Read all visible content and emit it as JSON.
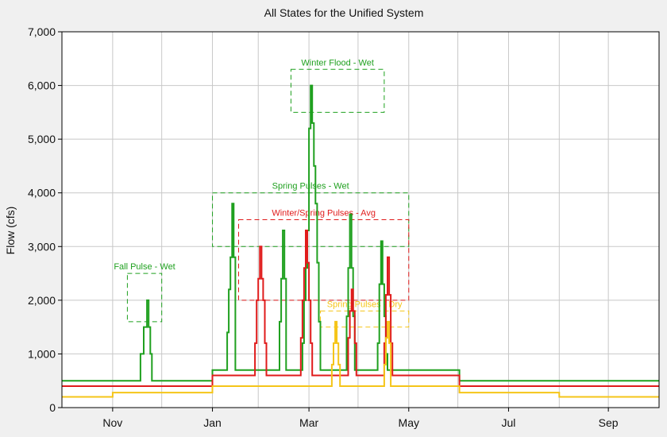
{
  "chart_data": {
    "type": "line",
    "title": "All States for the Unified System",
    "xlabel": "",
    "ylabel": "Flow (cfs)",
    "x_unit": "day-of-water-year",
    "xlim": [
      0,
      365
    ],
    "ylim": [
      0,
      7000
    ],
    "grid": true,
    "y_ticks": [
      0,
      1000,
      2000,
      3000,
      4000,
      5000,
      6000,
      7000
    ],
    "y_tick_labels": [
      "0",
      "1,000",
      "2,000",
      "3,000",
      "4,000",
      "5,000",
      "6,000",
      "7,000"
    ],
    "x_ticks": [
      {
        "label": "Nov",
        "x": 31
      },
      {
        "label": "Jan",
        "x": 92
      },
      {
        "label": "Mar",
        "x": 151
      },
      {
        "label": "May",
        "x": 212
      },
      {
        "label": "Jul",
        "x": 273
      },
      {
        "label": "Sep",
        "x": 334
      }
    ],
    "x_minor_gridlines": [
      0,
      61,
      120,
      181,
      242,
      304,
      365
    ],
    "series": [
      {
        "name": "Wet",
        "color": "#1fa01f",
        "points": [
          [
            0,
            500
          ],
          [
            48,
            500
          ],
          [
            48,
            1000
          ],
          [
            50,
            1000
          ],
          [
            50,
            1500
          ],
          [
            52,
            1500
          ],
          [
            52,
            2000
          ],
          [
            53,
            2000
          ],
          [
            53,
            1500
          ],
          [
            54,
            1500
          ],
          [
            54,
            1000
          ],
          [
            55,
            1000
          ],
          [
            55,
            500
          ],
          [
            92,
            500
          ],
          [
            92,
            700
          ],
          [
            101,
            700
          ],
          [
            101,
            1400
          ],
          [
            102,
            1400
          ],
          [
            102,
            2200
          ],
          [
            103,
            2200
          ],
          [
            103,
            2800
          ],
          [
            104,
            2800
          ],
          [
            104,
            3800
          ],
          [
            105,
            3800
          ],
          [
            105,
            2800
          ],
          [
            106,
            2800
          ],
          [
            106,
            700
          ],
          [
            133,
            700
          ],
          [
            133,
            1600
          ],
          [
            134,
            1600
          ],
          [
            134,
            2400
          ],
          [
            135,
            2400
          ],
          [
            135,
            3300
          ],
          [
            136,
            3300
          ],
          [
            136,
            2400
          ],
          [
            137,
            2400
          ],
          [
            137,
            700
          ],
          [
            147,
            700
          ],
          [
            147,
            1200
          ],
          [
            148,
            1200
          ],
          [
            148,
            2000
          ],
          [
            149,
            2000
          ],
          [
            149,
            2600
          ],
          [
            150,
            2600
          ],
          [
            150,
            3300
          ],
          [
            151,
            3300
          ],
          [
            151,
            5200
          ],
          [
            152,
            5200
          ],
          [
            152,
            6000
          ],
          [
            153,
            6000
          ],
          [
            153,
            5300
          ],
          [
            154,
            5300
          ],
          [
            154,
            4500
          ],
          [
            155,
            4500
          ],
          [
            155,
            3800
          ],
          [
            156,
            3800
          ],
          [
            156,
            2700
          ],
          [
            157,
            2700
          ],
          [
            157,
            1600
          ],
          [
            158,
            1600
          ],
          [
            158,
            700
          ],
          [
            174,
            700
          ],
          [
            174,
            1700
          ],
          [
            175,
            1700
          ],
          [
            175,
            2600
          ],
          [
            176,
            2600
          ],
          [
            176,
            3600
          ],
          [
            177,
            3600
          ],
          [
            177,
            2600
          ],
          [
            178,
            2600
          ],
          [
            178,
            1700
          ],
          [
            179,
            1700
          ],
          [
            179,
            700
          ],
          [
            193,
            700
          ],
          [
            193,
            1200
          ],
          [
            194,
            1200
          ],
          [
            194,
            2300
          ],
          [
            195,
            2300
          ],
          [
            195,
            3100
          ],
          [
            196,
            3100
          ],
          [
            196,
            2300
          ],
          [
            197,
            2300
          ],
          [
            197,
            1700
          ],
          [
            198,
            1700
          ],
          [
            198,
            1000
          ],
          [
            199,
            1000
          ],
          [
            199,
            700
          ],
          [
            243,
            700
          ],
          [
            243,
            500
          ],
          [
            365,
            500
          ]
        ]
      },
      {
        "name": "Avg",
        "color": "#e01b1b",
        "points": [
          [
            0,
            400
          ],
          [
            92,
            400
          ],
          [
            92,
            600
          ],
          [
            118,
            600
          ],
          [
            118,
            1200
          ],
          [
            119,
            1200
          ],
          [
            119,
            2000
          ],
          [
            120,
            2000
          ],
          [
            120,
            2400
          ],
          [
            121,
            2400
          ],
          [
            121,
            3000
          ],
          [
            122,
            3000
          ],
          [
            122,
            2400
          ],
          [
            123,
            2400
          ],
          [
            123,
            2000
          ],
          [
            124,
            2000
          ],
          [
            124,
            1200
          ],
          [
            125,
            1200
          ],
          [
            125,
            600
          ],
          [
            146,
            600
          ],
          [
            146,
            1300
          ],
          [
            147,
            1300
          ],
          [
            147,
            2000
          ],
          [
            148,
            2000
          ],
          [
            148,
            2600
          ],
          [
            149,
            2600
          ],
          [
            149,
            3300
          ],
          [
            150,
            3300
          ],
          [
            150,
            2700
          ],
          [
            151,
            2700
          ],
          [
            151,
            2000
          ],
          [
            152,
            2000
          ],
          [
            152,
            1200
          ],
          [
            153,
            1200
          ],
          [
            153,
            600
          ],
          [
            175,
            600
          ],
          [
            175,
            1300
          ],
          [
            176,
            1300
          ],
          [
            176,
            1800
          ],
          [
            177,
            1800
          ],
          [
            177,
            2200
          ],
          [
            178,
            2200
          ],
          [
            178,
            1800
          ],
          [
            179,
            1800
          ],
          [
            179,
            1200
          ],
          [
            180,
            1200
          ],
          [
            180,
            600
          ],
          [
            197,
            600
          ],
          [
            197,
            1200
          ],
          [
            198,
            1200
          ],
          [
            198,
            2100
          ],
          [
            199,
            2100
          ],
          [
            199,
            2800
          ],
          [
            200,
            2800
          ],
          [
            200,
            2100
          ],
          [
            201,
            2100
          ],
          [
            201,
            1200
          ],
          [
            202,
            1200
          ],
          [
            202,
            600
          ],
          [
            243,
            600
          ],
          [
            243,
            400
          ],
          [
            365,
            400
          ]
        ]
      },
      {
        "name": "Dry",
        "color": "#f5c518",
        "points": [
          [
            0,
            200
          ],
          [
            31,
            200
          ],
          [
            31,
            280
          ],
          [
            92,
            280
          ],
          [
            92,
            400
          ],
          [
            165,
            400
          ],
          [
            165,
            800
          ],
          [
            166,
            800
          ],
          [
            166,
            1200
          ],
          [
            167,
            1200
          ],
          [
            167,
            1600
          ],
          [
            168,
            1600
          ],
          [
            168,
            1200
          ],
          [
            169,
            1200
          ],
          [
            169,
            800
          ],
          [
            170,
            800
          ],
          [
            170,
            400
          ],
          [
            197,
            400
          ],
          [
            197,
            800
          ],
          [
            198,
            800
          ],
          [
            198,
            1300
          ],
          [
            199,
            1300
          ],
          [
            199,
            1600
          ],
          [
            200,
            1600
          ],
          [
            200,
            1200
          ],
          [
            201,
            1200
          ],
          [
            201,
            400
          ],
          [
            243,
            400
          ],
          [
            243,
            280
          ],
          [
            304,
            280
          ],
          [
            304,
            200
          ],
          [
            365,
            200
          ]
        ]
      }
    ],
    "annotations": [
      {
        "label": "Fall Pulse - Wet",
        "color": "#1fa01f",
        "x0": 40,
        "x1": 61,
        "y0": 1600,
        "y1": 2500
      },
      {
        "label": "Winter Flood - Wet",
        "color": "#1fa01f",
        "x0": 140,
        "x1": 197,
        "y0": 5500,
        "y1": 6300
      },
      {
        "label": "Spring Pulses - Wet",
        "color": "#1fa01f",
        "x0": 92,
        "x1": 212,
        "y0": 3000,
        "y1": 4000
      },
      {
        "label": "Winter/Spring Pulses - Avg",
        "color": "#e01b1b",
        "x0": 108,
        "x1": 212,
        "y0": 2000,
        "y1": 3500
      },
      {
        "label": "Spring Pulses - Dry",
        "color": "#f5c518",
        "x0": 158,
        "x1": 212,
        "y0": 1500,
        "y1": 1800
      }
    ]
  }
}
